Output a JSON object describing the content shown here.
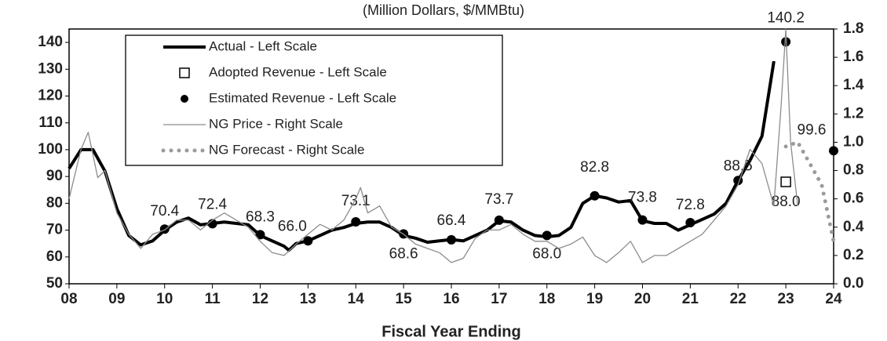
{
  "chart_data": {
    "type": "line",
    "subtitle": "(Million Dollars, $/MMBtu)",
    "x_label": "Fiscal Year Ending",
    "xlim": [
      8,
      24
    ],
    "xticks": [
      {
        "value": 8,
        "label": "08"
      },
      {
        "value": 9,
        "label": "09"
      },
      10,
      11,
      12,
      13,
      14,
      15,
      16,
      17,
      18,
      19,
      20,
      21,
      22,
      23,
      24
    ],
    "ylim": [
      50,
      145
    ],
    "yticks": [
      50,
      60,
      70,
      80,
      90,
      100,
      110,
      120,
      130,
      140
    ],
    "y2lim": [
      0,
      1.8
    ],
    "y2ticks": [
      {
        "value": 0,
        "label": "0.0"
      },
      0.2,
      0.4,
      0.6,
      0.8,
      {
        "value": 1,
        "label": "1.0"
      },
      1.2,
      1.4,
      1.6,
      1.8
    ],
    "legend": "top-left",
    "series": [
      {
        "name": "Actual - Left Scale",
        "color": "#000000",
        "style": "line",
        "axis": "y",
        "x": [
          8,
          8.25,
          8.5,
          8.75,
          9,
          9.25,
          9.5,
          9.75,
          10,
          10.25,
          10.5,
          10.75,
          11,
          11.25,
          11.5,
          11.75,
          12,
          12.25,
          12.5,
          12.6,
          12.75,
          13,
          13.25,
          13.5,
          13.75,
          14,
          14.25,
          14.5,
          14.75,
          15,
          15.25,
          15.5,
          15.75,
          16,
          16.25,
          16.5,
          16.75,
          17,
          17.25,
          17.5,
          17.75,
          18,
          18.25,
          18.5,
          18.75,
          19,
          19.25,
          19.5,
          19.75,
          20,
          20.25,
          20.5,
          20.75,
          21,
          21.25,
          21.5,
          21.75,
          22,
          22.25,
          22.5,
          22.75
        ],
        "values": [
          93,
          100,
          100,
          92,
          78,
          68,
          64.5,
          66,
          70,
          73,
          74.5,
          72,
          72.5,
          73,
          72.5,
          72,
          68,
          66,
          64,
          62.5,
          65,
          66,
          68,
          70,
          71,
          72.5,
          73,
          73,
          71,
          68,
          67,
          65.5,
          66,
          66.5,
          66,
          68,
          70,
          73.5,
          73,
          70,
          68,
          67.5,
          68,
          71,
          80,
          82.8,
          82,
          80.5,
          81,
          73.5,
          72.5,
          72.5,
          70,
          72,
          74,
          76,
          80,
          88.5,
          96,
          105,
          133
        ]
      },
      {
        "name": "Adopted Revenue - Left Scale",
        "color": "#000000",
        "style": "square",
        "axis": "y",
        "x": [
          23
        ],
        "values": [
          88
        ],
        "value_labels": [
          "88.0"
        ]
      },
      {
        "name": "Estimated Revenue - Left Scale",
        "color": "#000000",
        "style": "dot",
        "axis": "y",
        "x": [
          10,
          11,
          12,
          13,
          14,
          15,
          16,
          17,
          18,
          19,
          20,
          21,
          22,
          23,
          24
        ],
        "values": [
          70.4,
          72.4,
          68.3,
          66,
          73.1,
          68.6,
          66.4,
          73.7,
          68,
          82.8,
          73.8,
          72.8,
          88.5,
          140.2,
          99.6
        ],
        "value_labels": [
          "70.4",
          "72.4",
          "68.3",
          "66.0",
          "73.1",
          "68.6",
          "66.4",
          "73.7",
          "68.0",
          "82.8",
          "73.8",
          "72.8",
          "88.5",
          "140.2",
          "99.6"
        ]
      },
      {
        "name": "NG Price - Right Scale",
        "color": "#8c8c8c",
        "style": "line",
        "axis": "y2",
        "x": [
          8,
          8.25,
          8.4,
          8.6,
          8.75,
          9,
          9.25,
          9.5,
          9.75,
          10,
          10.25,
          10.5,
          10.75,
          11,
          11.25,
          11.5,
          11.75,
          12,
          12.25,
          12.5,
          12.75,
          13,
          13.25,
          13.5,
          13.75,
          14,
          14.1,
          14.25,
          14.5,
          14.75,
          15,
          15.25,
          15.5,
          15.75,
          16,
          16.25,
          16.5,
          16.75,
          17,
          17.25,
          17.5,
          17.75,
          18,
          18.25,
          18.5,
          18.75,
          19,
          19.25,
          19.5,
          19.75,
          20,
          20.25,
          20.5,
          20.75,
          21,
          21.25,
          21.5,
          21.75,
          22,
          22.25,
          22.5,
          22.75,
          22.9,
          23,
          23.1,
          23.25
        ],
        "values": [
          0.6,
          0.95,
          1.07,
          0.75,
          0.8,
          0.5,
          0.35,
          0.25,
          0.35,
          0.38,
          0.45,
          0.45,
          0.38,
          0.45,
          0.5,
          0.45,
          0.4,
          0.3,
          0.22,
          0.2,
          0.28,
          0.35,
          0.42,
          0.38,
          0.45,
          0.6,
          0.68,
          0.5,
          0.55,
          0.4,
          0.35,
          0.28,
          0.25,
          0.22,
          0.15,
          0.18,
          0.32,
          0.38,
          0.38,
          0.42,
          0.35,
          0.3,
          0.3,
          0.25,
          0.28,
          0.33,
          0.2,
          0.15,
          0.22,
          0.3,
          0.15,
          0.2,
          0.2,
          0.25,
          0.3,
          0.35,
          0.45,
          0.55,
          0.7,
          0.95,
          0.85,
          0.55,
          1.25,
          1.8,
          1,
          0.55
        ]
      },
      {
        "name": "NG Forecast - Right Scale",
        "color": "#9a9a9a",
        "style": "dotted",
        "axis": "y2",
        "x": [
          23,
          23.25,
          23.5,
          23.75,
          24
        ],
        "values": [
          0.97,
          1,
          0.85,
          0.7,
          0.3
        ]
      }
    ]
  }
}
